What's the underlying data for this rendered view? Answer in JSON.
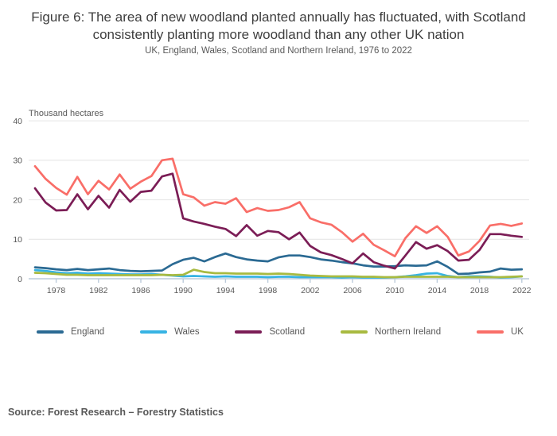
{
  "source": "Source: Forest Research – Forestry Statistics",
  "chart_data": {
    "type": "line",
    "title": "Figure 6: The area of new woodland planted annually has fluctuated, with Scotland consistently planting more woodland than any other UK nation",
    "subtitle": "UK, England, Wales, Scotland and Northern Ireland, 1976 to 2022",
    "unit_label": "Thousand hectares",
    "ylim": [
      0,
      40
    ],
    "y_ticks": [
      0,
      10,
      20,
      30,
      40
    ],
    "x_ticks": [
      1978,
      1982,
      1986,
      1990,
      1994,
      1998,
      2002,
      2006,
      2010,
      2014,
      2018,
      2022
    ],
    "grid": "horizontal",
    "legend_position": "bottom",
    "axis_color": "#bccbdb",
    "grid_color": "#e4e4e4",
    "tick_text_color": "#595959",
    "years": [
      1976,
      1977,
      1978,
      1979,
      1980,
      1981,
      1982,
      1983,
      1984,
      1985,
      1986,
      1987,
      1988,
      1989,
      1990,
      1991,
      1992,
      1993,
      1994,
      1995,
      1996,
      1997,
      1998,
      1999,
      2000,
      2001,
      2002,
      2003,
      2004,
      2005,
      2006,
      2007,
      2008,
      2009,
      2010,
      2011,
      2012,
      2013,
      2014,
      2015,
      2016,
      2017,
      2018,
      2019,
      2020,
      2021,
      2022
    ],
    "series": [
      {
        "name": "England",
        "color": "#2b6a93",
        "values": [
          2.9,
          2.7,
          2.4,
          2.2,
          2.5,
          2.2,
          2.4,
          2.6,
          2.2,
          2.0,
          1.9,
          2.0,
          2.1,
          3.7,
          4.8,
          5.3,
          4.4,
          5.5,
          6.4,
          5.5,
          4.9,
          4.6,
          4.4,
          5.4,
          5.9,
          5.9,
          5.5,
          4.9,
          4.6,
          4.2,
          3.9,
          3.4,
          3.1,
          3.1,
          3.2,
          3.4,
          3.3,
          3.4,
          4.4,
          3.0,
          1.2,
          1.3,
          1.6,
          1.8,
          2.6,
          2.3,
          2.4
        ]
      },
      {
        "name": "Wales",
        "color": "#37b3e3",
        "values": [
          2.2,
          2.0,
          1.6,
          1.4,
          1.5,
          1.3,
          1.4,
          1.3,
          1.2,
          1.1,
          1.1,
          1.2,
          1.0,
          0.8,
          0.6,
          0.7,
          0.6,
          0.5,
          0.6,
          0.5,
          0.5,
          0.5,
          0.4,
          0.5,
          0.5,
          0.4,
          0.4,
          0.4,
          0.4,
          0.3,
          0.4,
          0.3,
          0.3,
          0.3,
          0.4,
          0.6,
          0.9,
          1.3,
          1.4,
          0.7,
          0.4,
          0.6,
          0.6,
          0.5,
          0.3,
          0.4,
          0.6
        ]
      },
      {
        "name": "Scotland",
        "color": "#7b1d56",
        "values": [
          22.9,
          19.3,
          17.3,
          17.4,
          21.4,
          17.6,
          21.0,
          18.0,
          22.5,
          19.5,
          22.0,
          22.3,
          25.9,
          26.6,
          15.3,
          14.5,
          13.9,
          13.2,
          12.6,
          10.8,
          13.6,
          10.9,
          12.1,
          11.8,
          10.0,
          11.7,
          8.3,
          6.7,
          6.0,
          5.0,
          3.9,
          6.4,
          4.2,
          3.3,
          2.6,
          5.9,
          9.3,
          7.6,
          8.5,
          7.0,
          4.6,
          4.8,
          7.3,
          11.3,
          11.3,
          10.9,
          10.6
        ]
      },
      {
        "name": "Northern Ireland",
        "color": "#a8ba40",
        "values": [
          1.5,
          1.4,
          1.2,
          1.0,
          1.0,
          0.9,
          0.9,
          0.9,
          0.9,
          0.9,
          0.9,
          0.9,
          1.0,
          0.9,
          1.0,
          2.3,
          1.7,
          1.4,
          1.4,
          1.3,
          1.3,
          1.3,
          1.2,
          1.3,
          1.2,
          1.0,
          0.8,
          0.7,
          0.6,
          0.6,
          0.6,
          0.5,
          0.5,
          0.4,
          0.4,
          0.5,
          0.5,
          0.5,
          0.5,
          0.5,
          0.4,
          0.4,
          0.4,
          0.4,
          0.4,
          0.5,
          0.6
        ]
      },
      {
        "name": "UK",
        "color": "#f96e68",
        "values": [
          28.5,
          25.3,
          23.0,
          21.3,
          25.8,
          21.4,
          24.8,
          22.6,
          26.4,
          22.8,
          24.6,
          26.0,
          30.0,
          30.4,
          21.4,
          20.6,
          18.5,
          19.4,
          19.0,
          20.4,
          16.9,
          17.9,
          17.2,
          17.4,
          18.1,
          19.4,
          15.3,
          14.3,
          13.7,
          11.8,
          9.4,
          11.4,
          8.6,
          7.2,
          5.7,
          10.3,
          13.3,
          11.6,
          13.3,
          10.6,
          5.9,
          6.9,
          9.6,
          13.5,
          13.9,
          13.4,
          14.0
        ]
      }
    ]
  }
}
